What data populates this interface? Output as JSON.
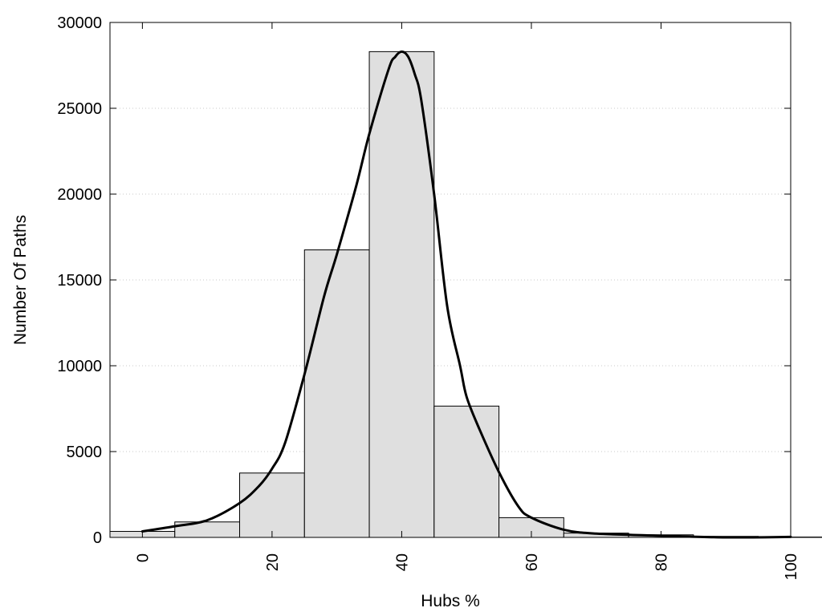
{
  "chart_data": {
    "type": "bar",
    "title": "",
    "xlabel": "Hubs %",
    "ylabel": "Number Of Paths",
    "xlim": [
      -5,
      100
    ],
    "ylim": [
      0,
      30000
    ],
    "x_ticks": [
      0,
      20,
      40,
      60,
      80,
      100
    ],
    "y_ticks": [
      0,
      5000,
      10000,
      15000,
      20000,
      25000,
      30000
    ],
    "grid": "horizontal dotted",
    "legend": "none",
    "bar_width": 10,
    "bars": [
      {
        "x": 0,
        "value": 350
      },
      {
        "x": 10,
        "value": 900
      },
      {
        "x": 20,
        "value": 3750
      },
      {
        "x": 30,
        "value": 16750
      },
      {
        "x": 40,
        "value": 28300
      },
      {
        "x": 50,
        "value": 7650
      },
      {
        "x": 60,
        "value": 1150
      },
      {
        "x": 70,
        "value": 250
      },
      {
        "x": 80,
        "value": 150
      },
      {
        "x": 90,
        "value": 60
      },
      {
        "x": 100,
        "value": 20
      }
    ],
    "curve": {
      "x": [
        0,
        5,
        10,
        15,
        18,
        20,
        22,
        25,
        28,
        30,
        33,
        35,
        38,
        39,
        40,
        41,
        42,
        43,
        45,
        47,
        49,
        50,
        52,
        55,
        58,
        60,
        65,
        70,
        80,
        90,
        100
      ],
      "y": [
        350,
        650,
        1000,
        2000,
        3000,
        4000,
        5500,
        9500,
        14000,
        16500,
        20500,
        23500,
        27300,
        28000,
        28300,
        28000,
        27000,
        25500,
        20000,
        13500,
        10000,
        8200,
        6300,
        3800,
        1800,
        1150,
        450,
        220,
        100,
        0,
        30
      ]
    },
    "colors": {
      "bar_fill": "#dfdfdf",
      "bar_stroke": "#000000",
      "curve": "#000000",
      "grid": "#c8c8c8"
    }
  }
}
